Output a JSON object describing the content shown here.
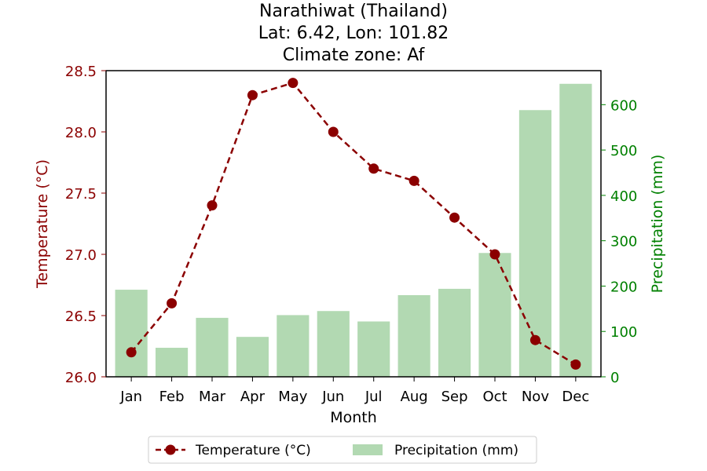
{
  "chart_data": {
    "type": "bar+line",
    "title": [
      "Narathiwat (Thailand)",
      "Lat: 6.42, Lon: 101.82",
      "Climate zone: Af"
    ],
    "xlabel": "Month",
    "ylabel_left": "Temperature (°C)",
    "ylabel_right": "Precipitation (mm)",
    "categories": [
      "Jan",
      "Feb",
      "Mar",
      "Apr",
      "May",
      "Jun",
      "Jul",
      "Aug",
      "Sep",
      "Oct",
      "Nov",
      "Dec"
    ],
    "temperature": [
      26.2,
      26.6,
      27.4,
      28.3,
      28.4,
      28.0,
      27.7,
      27.6,
      27.3,
      27.0,
      26.3,
      26.1
    ],
    "precipitation": [
      192,
      64,
      130,
      88,
      136,
      145,
      122,
      180,
      194,
      273,
      588,
      646
    ],
    "ylim_left": [
      26.0,
      28.5
    ],
    "ylim_right": [
      0,
      675
    ],
    "yticks_left": [
      "26.0",
      "26.5",
      "27.0",
      "27.5",
      "28.0",
      "28.5"
    ],
    "yticks_right": [
      "0",
      "100",
      "200",
      "300",
      "400",
      "500",
      "600"
    ],
    "legend": [
      "Temperature (°C)",
      "Precipitation (mm)"
    ],
    "legend_position": "bottom-center",
    "grid": false,
    "colors": {
      "temperature": "#8b0000",
      "precipitation": "#b2d9b2",
      "left_axis": "#8b0000",
      "right_axis": "#008000"
    }
  }
}
